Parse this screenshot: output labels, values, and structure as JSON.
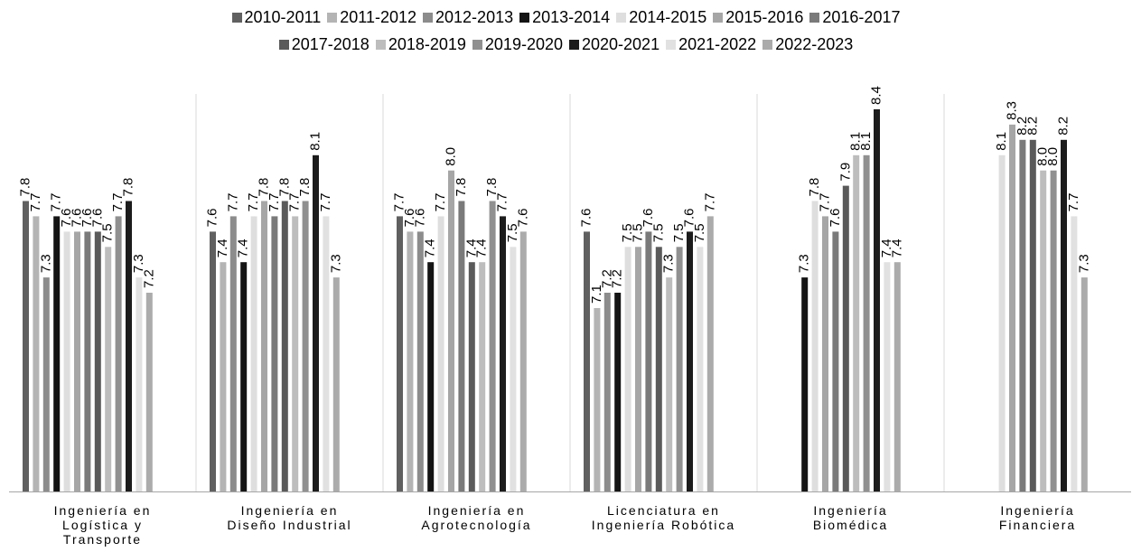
{
  "chart_data": {
    "type": "bar",
    "title": "",
    "xlabel": "",
    "ylabel": "",
    "ylim": [
      5.9,
      8.4
    ],
    "grid": false,
    "legend_position": "top",
    "categories": [
      "Ingeniería en Logística y Transporte",
      "Ingeniería en Diseño Industrial",
      "Ingeniería en Agrotecnología",
      "Licenciatura en Ingeniería Robótica",
      "Ingeniería Biomédica",
      "Ingeniería Financiera"
    ],
    "category_label_lines": [
      [
        "Ingeniería en",
        "Logística y",
        "Transporte"
      ],
      [
        "Ingeniería en",
        "Diseño Industrial"
      ],
      [
        "Ingeniería en",
        "Agrotecnología"
      ],
      [
        "Licenciatura en",
        "Ingeniería Robótica"
      ],
      [
        "Ingeniería",
        "Biomédica"
      ],
      [
        "Ingeniería",
        "Financiera"
      ]
    ],
    "series": [
      {
        "name": "2010-2011",
        "color": "#606060",
        "values": [
          7.8,
          7.6,
          7.7,
          7.6,
          null,
          null
        ]
      },
      {
        "name": "2011-2012",
        "color": "#b4b4b4",
        "values": [
          7.7,
          7.4,
          7.6,
          7.1,
          null,
          null
        ]
      },
      {
        "name": "2012-2013",
        "color": "#8c8c8c",
        "values": [
          7.3,
          7.7,
          7.6,
          7.2,
          null,
          null
        ]
      },
      {
        "name": "2013-2014",
        "color": "#141414",
        "values": [
          7.7,
          7.4,
          7.4,
          7.2,
          7.3,
          null
        ]
      },
      {
        "name": "2014-2015",
        "color": "#dedede",
        "values": [
          7.6,
          7.7,
          7.7,
          7.5,
          7.8,
          8.1
        ]
      },
      {
        "name": "2015-2016",
        "color": "#a6a6a6",
        "values": [
          7.6,
          7.8,
          8.0,
          7.5,
          7.7,
          8.3
        ]
      },
      {
        "name": "2016-2017",
        "color": "#7a7a7a",
        "values": [
          7.6,
          7.7,
          7.8,
          7.6,
          7.6,
          8.2
        ]
      },
      {
        "name": "2017-2018",
        "color": "#5a5a5a",
        "values": [
          7.6,
          7.8,
          7.4,
          7.5,
          7.9,
          8.2
        ]
      },
      {
        "name": "2018-2019",
        "color": "#bdbdbd",
        "values": [
          7.5,
          7.7,
          7.4,
          7.3,
          8.1,
          8.0
        ]
      },
      {
        "name": "2019-2020",
        "color": "#909090",
        "values": [
          7.7,
          7.8,
          7.8,
          7.5,
          8.1,
          8.0
        ]
      },
      {
        "name": "2020-2021",
        "color": "#1c1c1c",
        "values": [
          7.8,
          8.1,
          7.7,
          7.6,
          8.4,
          8.2
        ]
      },
      {
        "name": "2021-2022",
        "color": "#e1e1e1",
        "values": [
          7.3,
          7.7,
          7.5,
          7.5,
          7.4,
          7.7
        ]
      },
      {
        "name": "2022-2023",
        "color": "#ababab",
        "values": [
          7.2,
          7.3,
          7.6,
          7.7,
          7.4,
          7.3
        ]
      }
    ]
  }
}
